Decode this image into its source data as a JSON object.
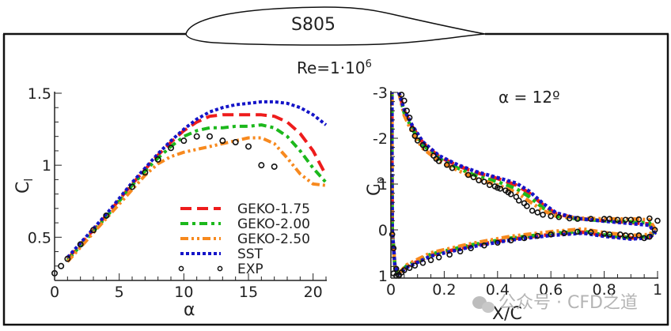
{
  "header": {
    "airfoil_label": "S805",
    "reynolds_label": "Re=1·10",
    "reynolds_exponent": "6"
  },
  "watermark": "公众号 · CFD之道",
  "chart_data": [
    {
      "type": "line",
      "title": "",
      "xlabel": "α",
      "ylabel": "C",
      "ylabel_sub": "l",
      "xlim": [
        0,
        21
      ],
      "ylim": [
        0.2,
        1.5
      ],
      "xticks": [
        0,
        5,
        10,
        15,
        20
      ],
      "xtick_labels": [
        "0",
        "5",
        "10",
        "15",
        "20"
      ],
      "yticks": [
        0.5,
        1,
        1.5
      ],
      "ytick_labels": [
        "0.5",
        "1",
        "1.5"
      ],
      "grid": false,
      "legend_position": "bottom-right",
      "series": [
        {
          "name": "GEKO-1.75",
          "color": "#ee1c1c",
          "style": "dashed",
          "x": [
            1,
            2,
            3,
            4,
            5,
            6,
            7,
            8,
            9,
            10,
            11,
            12,
            13,
            14,
            15,
            16,
            17,
            18,
            19,
            20,
            21
          ],
          "y": [
            0.35,
            0.45,
            0.55,
            0.65,
            0.76,
            0.87,
            0.97,
            1.07,
            1.16,
            1.24,
            1.3,
            1.34,
            1.35,
            1.35,
            1.35,
            1.35,
            1.34,
            1.3,
            1.22,
            1.1,
            0.93
          ]
        },
        {
          "name": "GEKO-2.00",
          "color": "#1cb81c",
          "style": "dash-dot",
          "x": [
            1,
            2,
            3,
            4,
            5,
            6,
            7,
            8,
            9,
            10,
            11,
            12,
            13,
            14,
            15,
            16,
            17,
            18,
            19,
            20,
            21
          ],
          "y": [
            0.34,
            0.44,
            0.54,
            0.64,
            0.75,
            0.86,
            0.96,
            1.05,
            1.13,
            1.2,
            1.24,
            1.26,
            1.26,
            1.27,
            1.27,
            1.28,
            1.26,
            1.2,
            1.1,
            0.98,
            0.88
          ]
        },
        {
          "name": "GEKO-2.50",
          "color": "#f7891e",
          "style": "dash-dot-dot",
          "x": [
            1,
            2,
            3,
            4,
            5,
            6,
            7,
            8,
            9,
            10,
            11,
            12,
            13,
            14,
            15,
            16,
            17,
            18,
            19,
            20,
            21
          ],
          "y": [
            0.33,
            0.43,
            0.53,
            0.63,
            0.73,
            0.83,
            0.93,
            1.01,
            1.06,
            1.09,
            1.11,
            1.13,
            1.15,
            1.17,
            1.19,
            1.19,
            1.15,
            1.05,
            0.94,
            0.87,
            0.86
          ]
        },
        {
          "name": "SST",
          "color": "#1414c8",
          "style": "dotted",
          "x": [
            1,
            2,
            3,
            4,
            5,
            6,
            7,
            8,
            9,
            10,
            11,
            12,
            13,
            14,
            15,
            16,
            17,
            18,
            19,
            20,
            21
          ],
          "y": [
            0.36,
            0.46,
            0.56,
            0.66,
            0.77,
            0.88,
            0.98,
            1.08,
            1.17,
            1.25,
            1.32,
            1.37,
            1.4,
            1.42,
            1.43,
            1.44,
            1.44,
            1.43,
            1.4,
            1.35,
            1.28
          ]
        },
        {
          "name": "EXP",
          "color": "#111111",
          "style": "markers",
          "x": [
            0,
            0.5,
            1,
            2,
            3,
            4,
            6,
            7,
            8,
            9,
            10,
            11,
            12,
            13,
            14,
            15,
            16,
            17
          ],
          "y": [
            0.25,
            0.3,
            0.35,
            0.45,
            0.55,
            0.65,
            0.85,
            0.95,
            1.04,
            1.12,
            1.17,
            1.2,
            1.2,
            1.17,
            1.16,
            1.13,
            1.0,
            0.99
          ]
        }
      ]
    },
    {
      "type": "line",
      "title": "α = 12º",
      "xlabel": "X/C",
      "ylabel": "C",
      "ylabel_sub": "p",
      "xlim": [
        0,
        1
      ],
      "ylim": [
        1,
        -3
      ],
      "y_inverted": true,
      "xticks": [
        0,
        0.2,
        0.4,
        0.6,
        0.8,
        1
      ],
      "xtick_labels": [
        "0",
        "0.2",
        "0.4",
        "0.6",
        "0.8",
        "1"
      ],
      "yticks": [
        -3,
        -2,
        -1,
        0,
        1
      ],
      "ytick_labels": [
        "-3",
        "-2",
        "-1",
        "0",
        "1"
      ],
      "grid": false,
      "series": [
        {
          "name": "GEKO-1.75",
          "color": "#ee1c1c",
          "style": "dashed",
          "x": [
            0.03,
            0.05,
            0.08,
            0.12,
            0.18,
            0.25,
            0.32,
            0.4,
            0.47,
            0.52,
            0.57,
            0.62,
            0.7,
            0.8,
            0.9,
            0.97,
            0.99,
            0.97,
            0.9,
            0.8,
            0.72,
            0.6,
            0.45,
            0.3,
            0.15,
            0.06,
            0.03,
            0.015,
            0.005,
            0.004,
            0.004
          ],
          "y": [
            -3.0,
            -2.6,
            -2.25,
            -1.9,
            -1.6,
            -1.4,
            -1.25,
            -1.12,
            -0.98,
            -0.8,
            -0.55,
            -0.35,
            -0.25,
            -0.2,
            -0.16,
            -0.13,
            0.05,
            0.15,
            0.18,
            0.12,
            0.05,
            0.1,
            0.2,
            0.35,
            0.55,
            0.8,
            0.95,
            0.8,
            0.0,
            -1.5,
            -3.0
          ]
        },
        {
          "name": "GEKO-2.00",
          "color": "#1cb81c",
          "style": "dash-dot",
          "x": [
            0.03,
            0.05,
            0.08,
            0.12,
            0.18,
            0.25,
            0.32,
            0.4,
            0.47,
            0.52,
            0.57,
            0.62,
            0.7,
            0.8,
            0.9,
            0.97,
            0.99,
            0.97,
            0.9,
            0.8,
            0.72,
            0.6,
            0.45,
            0.3,
            0.15,
            0.06,
            0.03,
            0.015,
            0.005,
            0.004,
            0.004
          ],
          "y": [
            -3.0,
            -2.55,
            -2.2,
            -1.85,
            -1.56,
            -1.35,
            -1.18,
            -1.05,
            -0.9,
            -0.72,
            -0.48,
            -0.3,
            -0.24,
            -0.2,
            -0.18,
            -0.15,
            0.03,
            0.14,
            0.17,
            0.11,
            0.03,
            0.08,
            0.18,
            0.33,
            0.53,
            0.78,
            0.95,
            0.8,
            0.0,
            -1.5,
            -3.0
          ]
        },
        {
          "name": "GEKO-2.50",
          "color": "#f7891e",
          "style": "dash-dot-dot",
          "x": [
            0.03,
            0.05,
            0.08,
            0.12,
            0.18,
            0.25,
            0.32,
            0.4,
            0.47,
            0.52,
            0.57,
            0.62,
            0.7,
            0.8,
            0.9,
            0.97,
            0.99,
            0.97,
            0.9,
            0.8,
            0.72,
            0.6,
            0.45,
            0.3,
            0.15,
            0.06,
            0.03,
            0.015,
            0.005,
            0.004,
            0.004
          ],
          "y": [
            -3.0,
            -2.5,
            -2.12,
            -1.78,
            -1.5,
            -1.3,
            -1.12,
            -0.98,
            -0.82,
            -0.62,
            -0.42,
            -0.3,
            -0.26,
            -0.24,
            -0.24,
            -0.22,
            -0.02,
            0.1,
            0.12,
            0.06,
            -0.02,
            0.04,
            0.14,
            0.3,
            0.5,
            0.76,
            0.95,
            0.8,
            0.0,
            -1.5,
            -3.0
          ]
        },
        {
          "name": "SST",
          "color": "#1414c8",
          "style": "dotted",
          "x": [
            0.03,
            0.05,
            0.08,
            0.12,
            0.18,
            0.25,
            0.32,
            0.4,
            0.47,
            0.52,
            0.57,
            0.62,
            0.7,
            0.8,
            0.9,
            0.97,
            0.99,
            0.97,
            0.9,
            0.8,
            0.72,
            0.6,
            0.45,
            0.3,
            0.15,
            0.06,
            0.03,
            0.015,
            0.005,
            0.004,
            0.004
          ],
          "y": [
            -3.0,
            -2.62,
            -2.28,
            -1.92,
            -1.62,
            -1.42,
            -1.27,
            -1.14,
            -1.02,
            -0.84,
            -0.58,
            -0.37,
            -0.25,
            -0.19,
            -0.14,
            -0.1,
            0.07,
            0.17,
            0.2,
            0.14,
            0.07,
            0.12,
            0.22,
            0.37,
            0.57,
            0.82,
            0.96,
            0.8,
            0.0,
            -1.5,
            -3.0
          ]
        },
        {
          "name": "EXP",
          "color": "#111111",
          "style": "markers",
          "x": [
            0.005,
            0.01,
            0.02,
            0.03,
            0.04,
            0.05,
            0.06,
            0.07,
            0.08,
            0.09,
            0.1,
            0.12,
            0.13,
            0.16,
            0.17,
            0.18,
            0.21,
            0.23,
            0.29,
            0.31,
            0.33,
            0.35,
            0.37,
            0.39,
            0.4,
            0.41,
            0.43,
            0.44,
            0.45,
            0.47,
            0.48,
            0.5,
            0.51,
            0.53,
            0.55,
            0.57,
            0.6,
            0.63,
            0.67,
            0.7,
            0.75,
            0.8,
            0.82,
            0.85,
            0.88,
            0.9,
            0.93,
            0.97,
            1.0,
            0.01,
            0.02,
            0.03,
            0.04,
            0.05,
            0.07,
            0.09,
            0.12,
            0.15,
            0.18,
            0.22,
            0.26,
            0.3,
            0.35,
            0.4,
            0.45,
            0.5,
            0.55,
            0.6,
            0.65,
            0.7,
            0.75,
            0.8,
            0.82,
            0.86,
            0.88,
            0.9,
            0.93,
            0.95,
            0.97,
            0.99
          ],
          "y": [
            0.1,
            0.4,
            0.85,
            1.0,
            -2.95,
            -2.82,
            -2.6,
            -2.45,
            -2.2,
            -2.05,
            -1.95,
            -1.85,
            -1.78,
            -1.62,
            -1.55,
            -1.5,
            -1.42,
            -1.35,
            -1.2,
            -1.15,
            -1.08,
            -1.05,
            -0.98,
            -0.95,
            -0.92,
            -0.9,
            -0.86,
            -0.82,
            -0.78,
            -0.72,
            -0.64,
            -0.58,
            -0.52,
            -0.42,
            -0.38,
            -0.33,
            -0.3,
            -0.28,
            -0.25,
            -0.24,
            -0.24,
            -0.24,
            -0.24,
            -0.22,
            -0.22,
            -0.22,
            -0.23,
            -0.25,
            -0.2,
            0.95,
            1.0,
            0.98,
            0.93,
            0.88,
            0.83,
            0.78,
            0.72,
            0.66,
            0.6,
            0.54,
            0.47,
            0.4,
            0.34,
            0.28,
            0.23,
            0.18,
            0.13,
            0.1,
            0.07,
            0.04,
            0.05,
            0.08,
            0.1,
            0.1,
            0.12,
            0.13,
            0.12,
            0.18,
            0.15,
            0.0
          ]
        }
      ]
    }
  ]
}
